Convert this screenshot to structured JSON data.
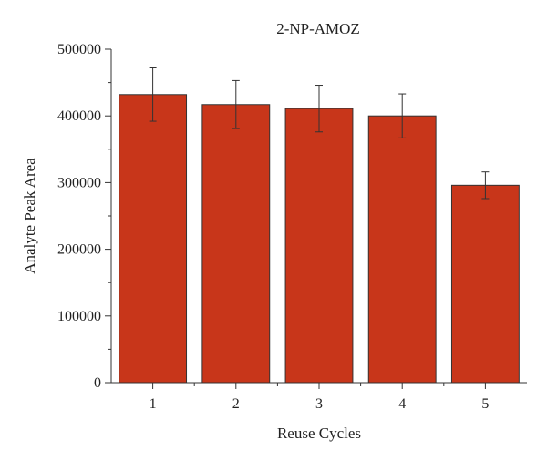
{
  "chart_data": {
    "type": "bar",
    "title": "2-NP-AMOZ",
    "xlabel": "Reuse Cycles",
    "ylabel": "Analyte Peak Area",
    "categories": [
      "1",
      "2",
      "3",
      "4",
      "5"
    ],
    "values": [
      432000,
      417000,
      411000,
      400000,
      296000
    ],
    "error": [
      40000,
      36000,
      35000,
      33000,
      20000
    ],
    "ylim": [
      0,
      500000
    ],
    "yticks": [
      0,
      100000,
      200000,
      300000,
      400000,
      500000
    ],
    "ytick_labels": [
      "0",
      "100000",
      "200000",
      "300000",
      "400000",
      "500000"
    ],
    "bar_color": "#c8361a",
    "grid": false,
    "legend": "none"
  }
}
